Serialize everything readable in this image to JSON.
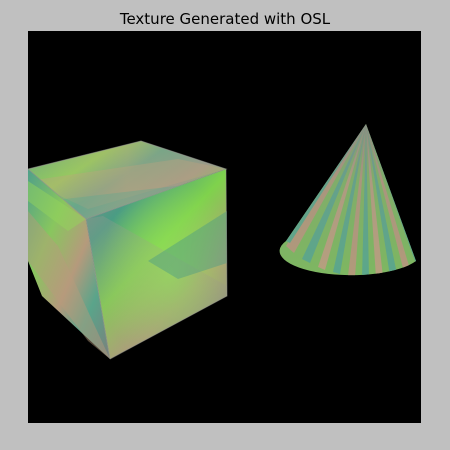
{
  "window": {
    "title": "Texture Generated with OSL"
  },
  "viewport": {
    "background": "#000000"
  },
  "colors": {
    "frame": "#c0c0c0",
    "texture_green": "#7fd24a",
    "texture_teal": "#4a9a82",
    "texture_tan": "#b49a7a",
    "texture_gray": "#8a8a86"
  },
  "scene": {
    "objects": [
      {
        "name": "cube",
        "material": "osl-texture"
      },
      {
        "name": "cone",
        "material": "osl-texture-stripes"
      }
    ]
  }
}
